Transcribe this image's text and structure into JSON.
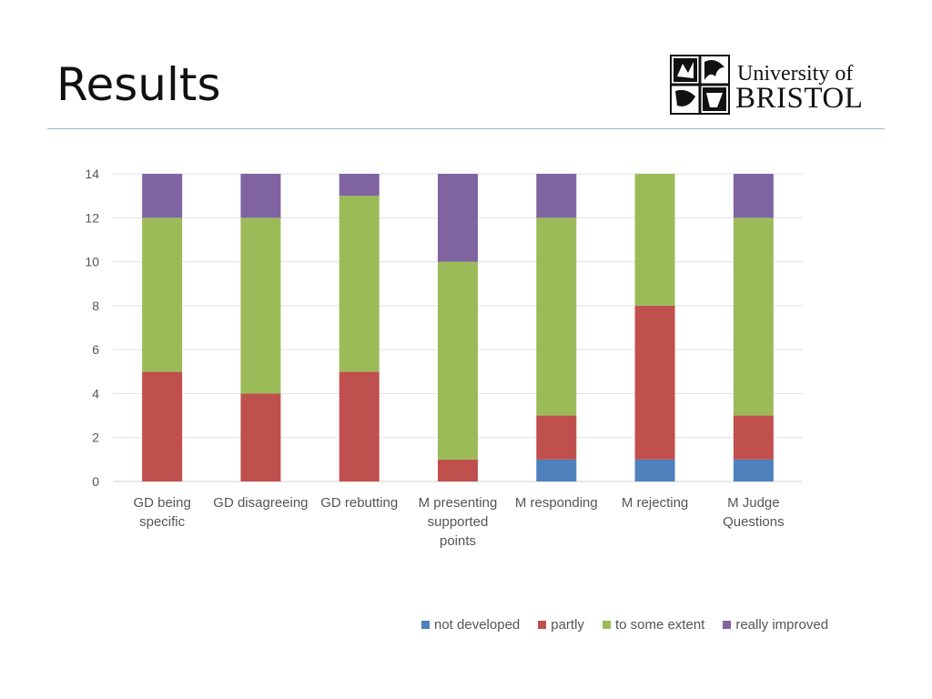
{
  "slide": {
    "title": "Results"
  },
  "logo": {
    "line1": "University of",
    "line2": "BRISTOL"
  },
  "chart_data": {
    "type": "bar",
    "stacked": true,
    "title": "",
    "xlabel": "",
    "ylabel": "",
    "ylim": [
      0,
      14
    ],
    "yticks": [
      0,
      2,
      4,
      6,
      8,
      10,
      12,
      14
    ],
    "grid": true,
    "legend_position": "bottom-right",
    "categories": [
      [
        "GD being",
        "specific"
      ],
      [
        "GD disagreeing"
      ],
      [
        "GD rebutting"
      ],
      [
        "M presenting",
        "supported",
        "points"
      ],
      [
        "M responding"
      ],
      [
        "M rejecting"
      ],
      [
        "M Judge",
        "Questions"
      ]
    ],
    "series": [
      {
        "name": "not developed",
        "color": "#4f81bd",
        "values": [
          0,
          0,
          0,
          0,
          1,
          1,
          1
        ]
      },
      {
        "name": "partly",
        "color": "#c0504d",
        "values": [
          5,
          4,
          5,
          1,
          2,
          7,
          2
        ]
      },
      {
        "name": "to some extent",
        "color": "#9bbb59",
        "values": [
          7,
          8,
          8,
          9,
          9,
          6,
          9
        ]
      },
      {
        "name": "really improved",
        "color": "#8064a2",
        "values": [
          2,
          2,
          1,
          4,
          2,
          0,
          2
        ]
      }
    ]
  }
}
